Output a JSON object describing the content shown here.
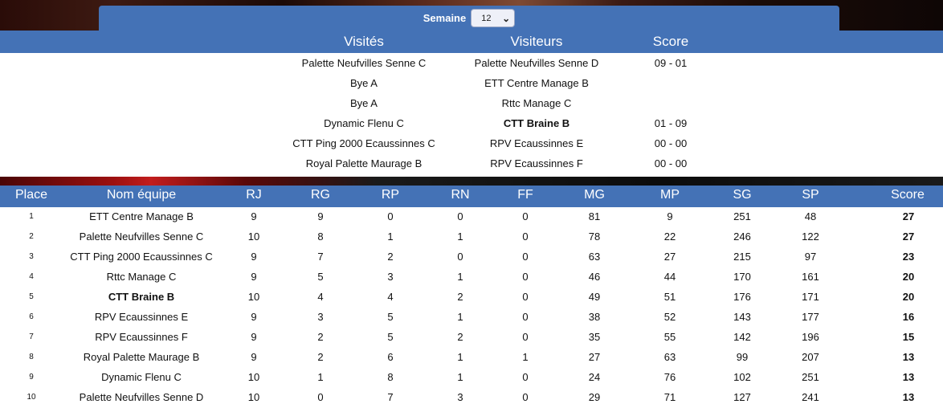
{
  "semaine": {
    "label": "Semaine",
    "selected": "12"
  },
  "matches_header": {
    "home": "Visités",
    "away": "Visiteurs",
    "score": "Score"
  },
  "matches": [
    {
      "home": "Palette Neufvilles Senne C",
      "away": "Palette Neufvilles Senne D",
      "score": "09 - 01",
      "bold_home": false,
      "bold_away": false
    },
    {
      "home": "Bye A",
      "away": "ETT Centre Manage B",
      "score": "",
      "bold_home": false,
      "bold_away": false
    },
    {
      "home": "Bye A",
      "away": "Rttc Manage C",
      "score": "",
      "bold_home": false,
      "bold_away": false
    },
    {
      "home": "Dynamic Flenu C",
      "away": "CTT Braine B",
      "score": "01 - 09",
      "bold_home": false,
      "bold_away": true
    },
    {
      "home": "CTT Ping 2000 Ecaussinnes C",
      "away": "RPV Ecaussinnes E",
      "score": "00 - 00",
      "bold_home": false,
      "bold_away": false
    },
    {
      "home": "Royal Palette Maurage B",
      "away": "RPV Ecaussinnes F",
      "score": "00 - 00",
      "bold_home": false,
      "bold_away": false
    }
  ],
  "ranking_header": {
    "place": "Place",
    "team": "Nom équipe",
    "rj": "RJ",
    "rg": "RG",
    "rp": "RP",
    "rn": "RN",
    "ff": "FF",
    "mg": "MG",
    "mp": "MP",
    "sg": "SG",
    "sp": "SP",
    "score": "Score"
  },
  "ranking": [
    {
      "place": "1",
      "team": "ETT Centre Manage B",
      "rj": "9",
      "rg": "9",
      "rp": "0",
      "rn": "0",
      "ff": "0",
      "mg": "81",
      "mp": "9",
      "sg": "251",
      "sp": "48",
      "score": "27",
      "bold": false
    },
    {
      "place": "2",
      "team": "Palette Neufvilles Senne C",
      "rj": "10",
      "rg": "8",
      "rp": "1",
      "rn": "1",
      "ff": "0",
      "mg": "78",
      "mp": "22",
      "sg": "246",
      "sp": "122",
      "score": "27",
      "bold": false
    },
    {
      "place": "3",
      "team": "CTT Ping 2000 Ecaussinnes C",
      "rj": "9",
      "rg": "7",
      "rp": "2",
      "rn": "0",
      "ff": "0",
      "mg": "63",
      "mp": "27",
      "sg": "215",
      "sp": "97",
      "score": "23",
      "bold": false
    },
    {
      "place": "4",
      "team": "Rttc Manage C",
      "rj": "9",
      "rg": "5",
      "rp": "3",
      "rn": "1",
      "ff": "0",
      "mg": "46",
      "mp": "44",
      "sg": "170",
      "sp": "161",
      "score": "20",
      "bold": false
    },
    {
      "place": "5",
      "team": "CTT Braine B",
      "rj": "10",
      "rg": "4",
      "rp": "4",
      "rn": "2",
      "ff": "0",
      "mg": "49",
      "mp": "51",
      "sg": "176",
      "sp": "171",
      "score": "20",
      "bold": true
    },
    {
      "place": "6",
      "team": "RPV Ecaussinnes E",
      "rj": "9",
      "rg": "3",
      "rp": "5",
      "rn": "1",
      "ff": "0",
      "mg": "38",
      "mp": "52",
      "sg": "143",
      "sp": "177",
      "score": "16",
      "bold": false
    },
    {
      "place": "7",
      "team": "RPV Ecaussinnes F",
      "rj": "9",
      "rg": "2",
      "rp": "5",
      "rn": "2",
      "ff": "0",
      "mg": "35",
      "mp": "55",
      "sg": "142",
      "sp": "196",
      "score": "15",
      "bold": false
    },
    {
      "place": "8",
      "team": "Royal Palette Maurage B",
      "rj": "9",
      "rg": "2",
      "rp": "6",
      "rn": "1",
      "ff": "1",
      "mg": "27",
      "mp": "63",
      "sg": "99",
      "sp": "207",
      "score": "13",
      "bold": false
    },
    {
      "place": "9",
      "team": "Dynamic Flenu C",
      "rj": "10",
      "rg": "1",
      "rp": "8",
      "rn": "1",
      "ff": "0",
      "mg": "24",
      "mp": "76",
      "sg": "102",
      "sp": "251",
      "score": "13",
      "bold": false
    },
    {
      "place": "10",
      "team": "Palette Neufvilles Senne D",
      "rj": "10",
      "rg": "0",
      "rp": "7",
      "rn": "3",
      "ff": "0",
      "mg": "29",
      "mp": "71",
      "sg": "127",
      "sp": "241",
      "score": "13",
      "bold": false
    }
  ],
  "colors": {
    "header_blue": "#4472b6",
    "header_text": "#ffffff"
  },
  "icons": {
    "select_arrow": "chevron-down-icon"
  }
}
